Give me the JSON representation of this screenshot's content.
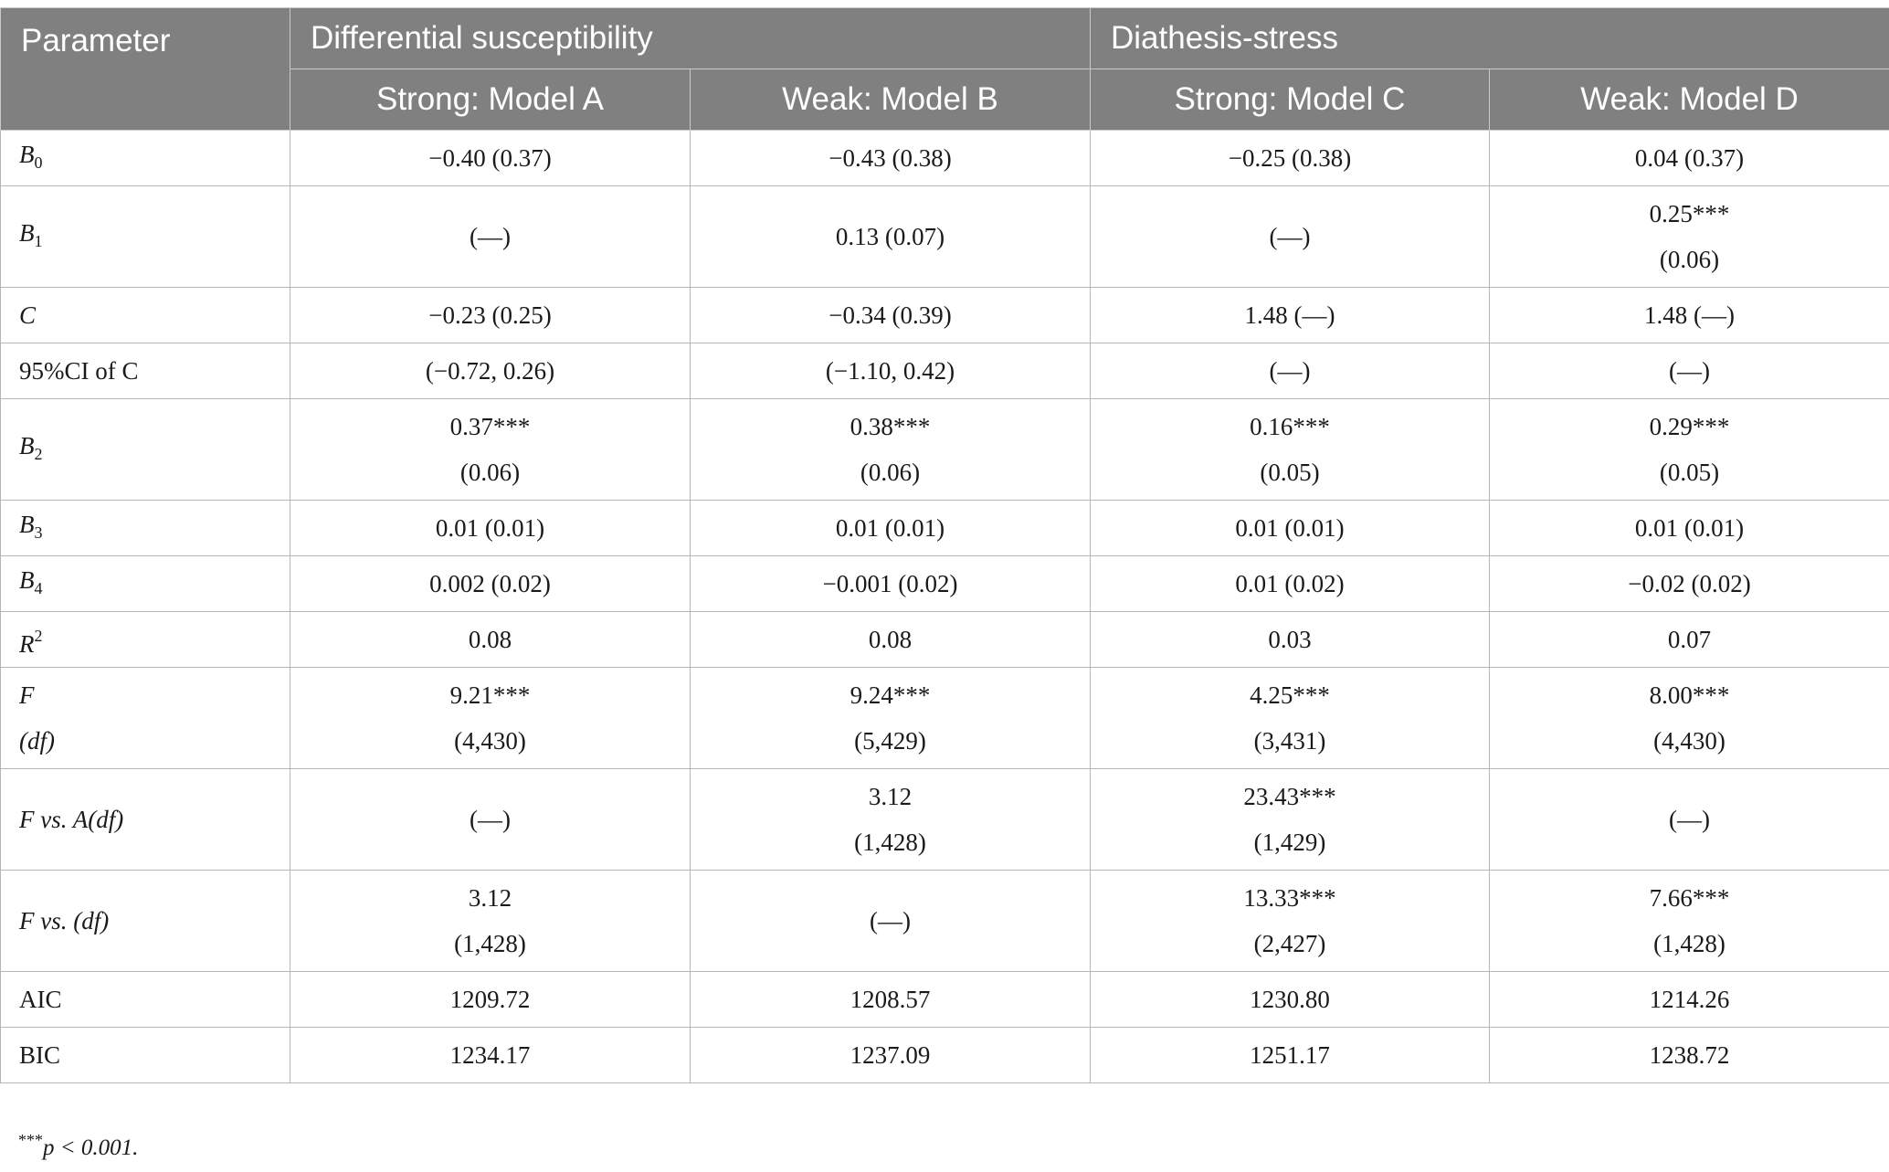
{
  "header": {
    "parameter": "Parameter",
    "group1": "Differential susceptibility",
    "group2": "Diathesis-stress",
    "models": [
      "Strong: Model A",
      "Weak: Model B",
      "Strong: Model C",
      "Weak: Model D"
    ]
  },
  "rows": [
    {
      "label": "B",
      "sub": "0",
      "label2": "",
      "cells": [
        [
          "−0.40 (0.37)"
        ],
        [
          "−0.43 (0.38)"
        ],
        [
          "−0.25 (0.38)"
        ],
        [
          "0.04 (0.37)"
        ]
      ]
    },
    {
      "label": "B",
      "sub": "1",
      "label2": "",
      "cells": [
        [
          "(—)"
        ],
        [
          "0.13 (0.07)"
        ],
        [
          "(—)"
        ],
        [
          "0.25***",
          "(0.06)"
        ]
      ]
    },
    {
      "label": "C",
      "sub": "",
      "label2": "",
      "cells": [
        [
          "−0.23 (0.25)"
        ],
        [
          "−0.34 (0.39)"
        ],
        [
          "1.48 (—)"
        ],
        [
          "1.48 (—)"
        ]
      ]
    },
    {
      "label": "95%CI of C",
      "sub": "",
      "label2": "",
      "cells": [
        [
          "(−0.72, 0.26)"
        ],
        [
          "(−1.10, 0.42)"
        ],
        [
          "(—)"
        ],
        [
          "(—)"
        ]
      ]
    },
    {
      "label": "B",
      "sub": "2",
      "label2": "",
      "cells": [
        [
          "0.37***",
          "(0.06)"
        ],
        [
          "0.38***",
          "(0.06)"
        ],
        [
          "0.16***",
          "(0.05)"
        ],
        [
          "0.29***",
          "(0.05)"
        ]
      ]
    },
    {
      "label": "B",
      "sub": "3",
      "label2": "",
      "cells": [
        [
          "0.01 (0.01)"
        ],
        [
          "0.01 (0.01)"
        ],
        [
          "0.01 (0.01)"
        ],
        [
          "0.01 (0.01)"
        ]
      ]
    },
    {
      "label": "B",
      "sub": "4",
      "label2": "",
      "cells": [
        [
          "0.002 (0.02)"
        ],
        [
          "−0.001 (0.02)"
        ],
        [
          "0.01 (0.02)"
        ],
        [
          "−0.02 (0.02)"
        ]
      ]
    },
    {
      "label": "R",
      "sup": "2",
      "label2": "",
      "cells": [
        [
          "0.08"
        ],
        [
          "0.08"
        ],
        [
          "0.03"
        ],
        [
          "0.07"
        ]
      ]
    },
    {
      "label": "F",
      "sub": "",
      "label2": "(df)",
      "cells": [
        [
          "9.21***",
          "(4,430)"
        ],
        [
          "9.24***",
          "(5,429)"
        ],
        [
          "4.25***",
          "(3,431)"
        ],
        [
          "8.00***",
          "(4,430)"
        ]
      ]
    },
    {
      "label": "F vs. A(df)",
      "sub": "",
      "label2": "",
      "cells": [
        [
          "(—)"
        ],
        [
          "3.12",
          "(1,428)"
        ],
        [
          "23.43***",
          "(1,429)"
        ],
        [
          "(—)"
        ]
      ]
    },
    {
      "label": "F vs. (df)",
      "sub": "",
      "label2": "",
      "cells": [
        [
          "3.12",
          "(1,428)"
        ],
        [
          "(—)"
        ],
        [
          "13.33***",
          "(2,427)"
        ],
        [
          "7.66***",
          "(1,428)"
        ]
      ]
    },
    {
      "label": "AIC",
      "sub": "",
      "label2": "",
      "cells": [
        [
          "1209.72"
        ],
        [
          "1208.57"
        ],
        [
          "1230.80"
        ],
        [
          "1214.26"
        ]
      ]
    },
    {
      "label": "BIC",
      "sub": "",
      "label2": "",
      "cells": [
        [
          "1234.17"
        ],
        [
          "1237.09"
        ],
        [
          "1251.17"
        ],
        [
          "1238.72"
        ]
      ]
    }
  ],
  "footnote": {
    "stars": "***",
    "text": "p < 0.001."
  }
}
